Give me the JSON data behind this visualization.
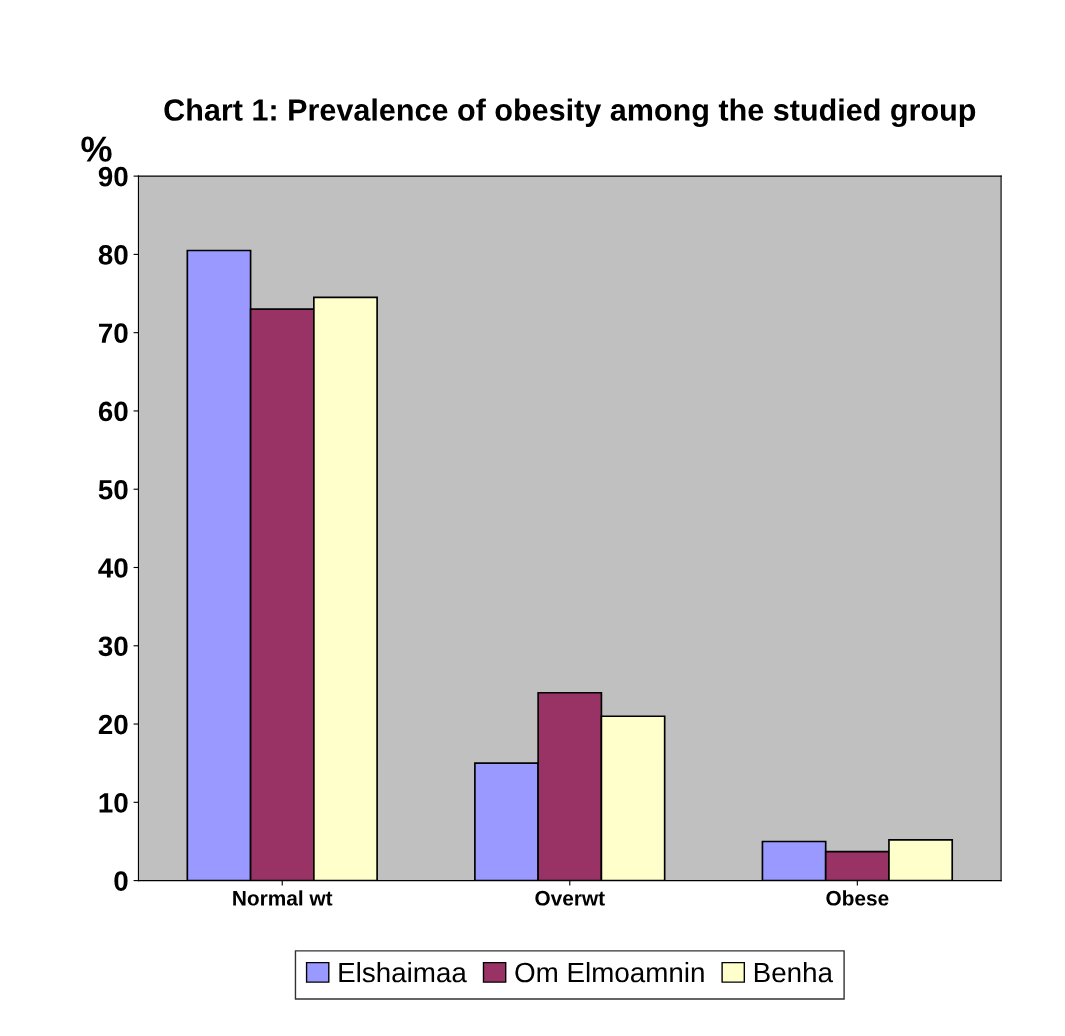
{
  "chart_data": {
    "type": "bar",
    "title": "Chart 1: Prevalence of obesity among the studied group",
    "ylabel": "%",
    "categories": [
      "Normal wt",
      "Overwt",
      "Obese"
    ],
    "series": [
      {
        "name": "Elshaimaa",
        "color": "#9999ff",
        "values": [
          80.5,
          15,
          5
        ]
      },
      {
        "name": "Om Elmoamnin",
        "color": "#993366",
        "values": [
          73,
          24,
          3.7
        ]
      },
      {
        "name": "Benha",
        "color": "#ffffcc",
        "values": [
          74.5,
          21,
          5.2
        ]
      }
    ],
    "ylim": [
      0,
      90
    ],
    "yticks": [
      0,
      10,
      20,
      30,
      40,
      50,
      60,
      70,
      80,
      90
    ],
    "grid": false,
    "legend": "bottom"
  }
}
